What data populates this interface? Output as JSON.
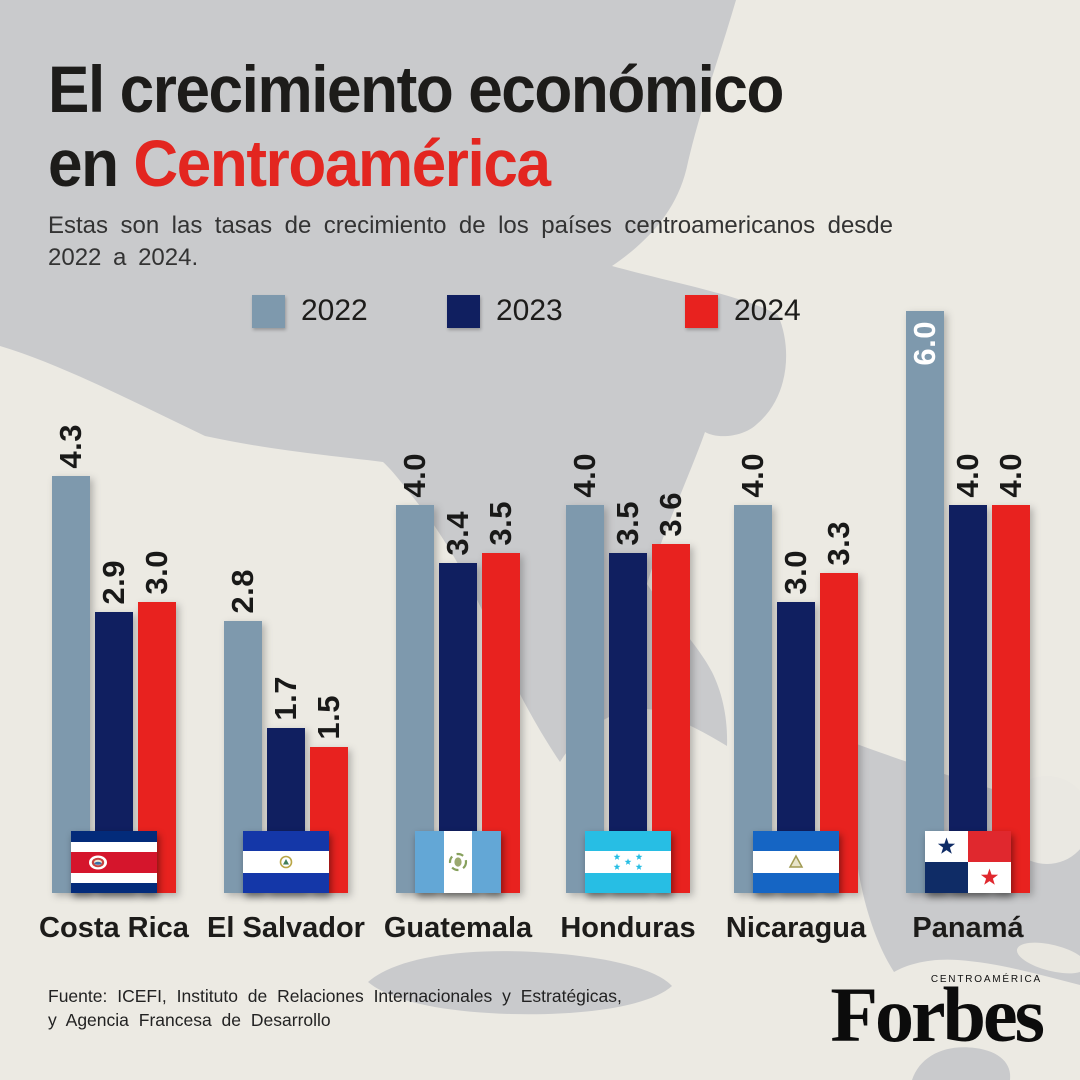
{
  "header": {
    "title_line1": "El crecimiento económico",
    "title_line2_prefix": "en ",
    "title_line2_accent": "Centroamérica",
    "accent_color": "#E32620",
    "subtitle": "Estas son las tasas de crecimiento de los países centroamericanos desde 2022 a 2024."
  },
  "chart_data": {
    "type": "bar",
    "categories": [
      "Costa Rica",
      "El Salvador",
      "Guatemala",
      "Honduras",
      "Nicaragua",
      "Panamá"
    ],
    "series": [
      {
        "name": "2022",
        "color": "#7E99AD",
        "values": [
          4.3,
          2.8,
          4.0,
          4.0,
          4.0,
          6.0
        ]
      },
      {
        "name": "2023",
        "color": "#101F60",
        "values": [
          2.9,
          1.7,
          3.4,
          3.5,
          3.0,
          4.0
        ]
      },
      {
        "name": "2024",
        "color": "#E8221F",
        "values": [
          3.0,
          1.5,
          3.5,
          3.6,
          3.3,
          4.0
        ]
      }
    ],
    "ylim": [
      0,
      6.2
    ],
    "grid": false,
    "legend_position": "top",
    "value_label_format": "one-decimal-rotated",
    "flags": [
      "flag-costa-rica",
      "flag-el-salvador",
      "flag-guatemala",
      "flag-honduras",
      "flag-nicaragua",
      "flag-panama"
    ]
  },
  "footer": {
    "source_line1": "Fuente: ICEFI, Instituto de Relaciones Internacionales y Estratégicas,",
    "source_line2": "y Agencia Francesa de Desarrollo",
    "brand": "Forbes",
    "brand_region": "CENTROAMÉRICA"
  }
}
